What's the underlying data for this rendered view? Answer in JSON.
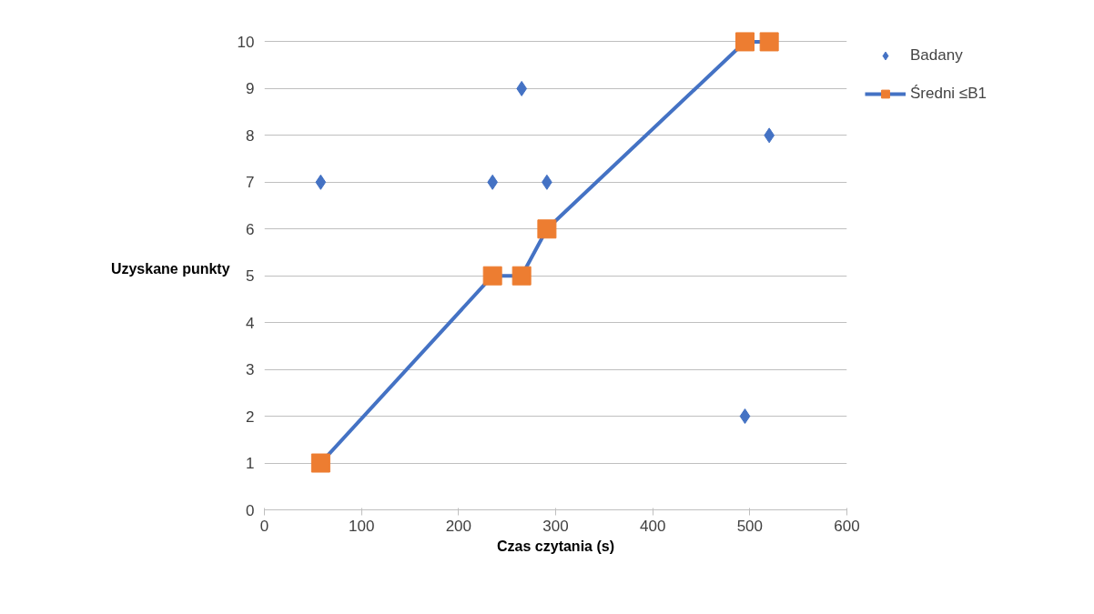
{
  "chart_data": {
    "type": "scatter",
    "xlabel": "Czas czytania (s)",
    "ylabel": "Uzyskane punkty",
    "xlim": [
      0,
      600
    ],
    "xticks": [
      0,
      100,
      200,
      300,
      400,
      500,
      600
    ],
    "ylim": [
      0,
      10
    ],
    "yticks": [
      0,
      1,
      2,
      3,
      4,
      5,
      6,
      7,
      8,
      9,
      10
    ],
    "grid": "y",
    "legend": "right",
    "series": [
      {
        "name": "Badany",
        "marker": "diamond",
        "color": "#4472c4",
        "x": [
          58,
          235,
          265,
          291,
          495,
          520
        ],
        "values": [
          7,
          7,
          9,
          7,
          2,
          8
        ]
      },
      {
        "name": "Średni ≤B1",
        "type": "line",
        "marker": "square",
        "color": "#4472c4",
        "colors": [
          "#ed7d31",
          "#ed7d31",
          "#ed7d31",
          "#ed7d31",
          "#ed7d31",
          "#ed7d31"
        ],
        "x": [
          58,
          235,
          265,
          291,
          495,
          520
        ],
        "values": [
          1,
          5,
          5,
          6,
          10,
          10
        ]
      }
    ]
  }
}
